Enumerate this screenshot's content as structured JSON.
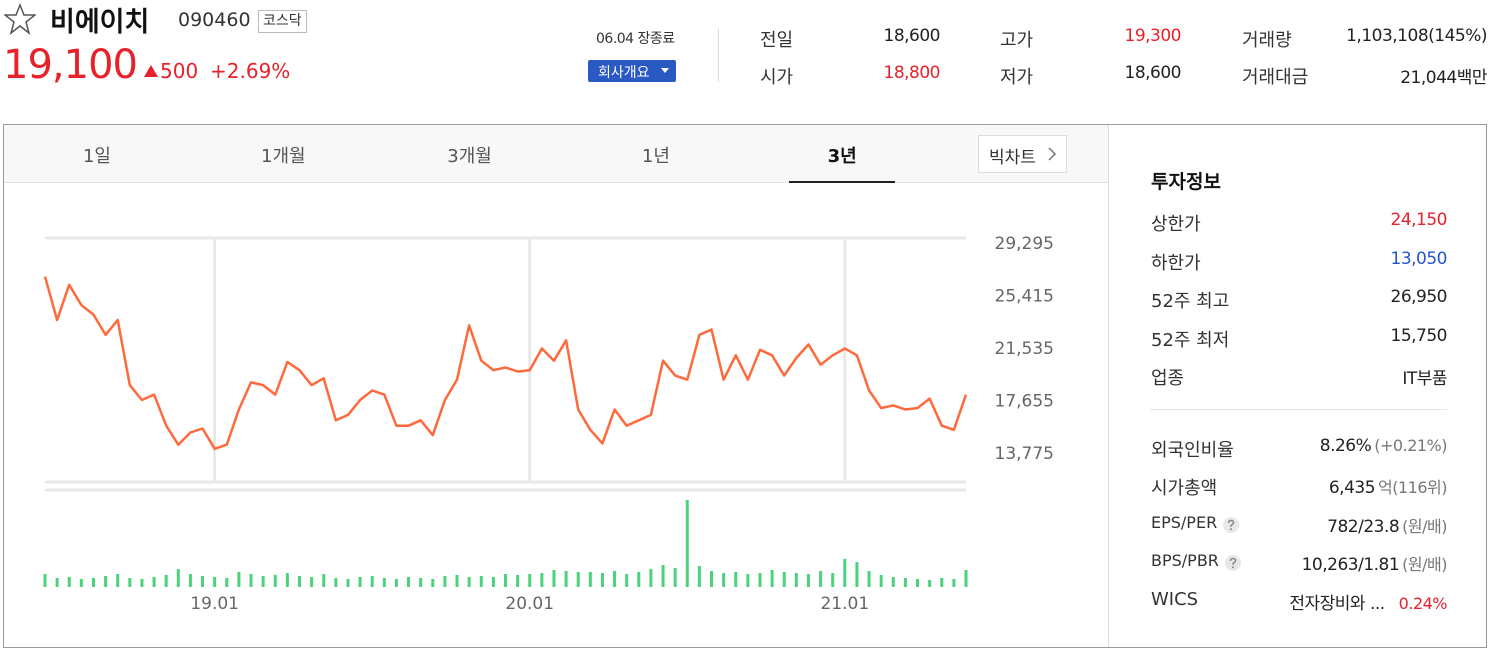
{
  "header": {
    "name": "비에이치",
    "code": "090460",
    "market": "코스닥",
    "price": "19,100",
    "change": "500",
    "change_rate": "+2.69%",
    "status": "06.04 장종료",
    "company_button": "회사개요",
    "up_color": "#e8212b"
  },
  "summary": [
    {
      "label": "전일",
      "value": "18,600"
    },
    {
      "label": "시가",
      "value": "18,800",
      "color": "#e8212b"
    },
    {
      "label": "고가",
      "value": "19,300",
      "color": "#e8212b"
    },
    {
      "label": "저가",
      "value": "18,600"
    },
    {
      "label": "거래량",
      "value": "1,103,108(145%)"
    },
    {
      "label": "거래대금",
      "value": "21,044백만"
    }
  ],
  "tabs": [
    "1일",
    "1개월",
    "3개월",
    "1년",
    "3년"
  ],
  "active_tab": 4,
  "bigchart_button": "빅차트",
  "chart_data": [
    {
      "type": "line",
      "color": "#ff6a3d",
      "values": [
        26800,
        23600,
        26200,
        24700,
        24000,
        22500,
        23600,
        18800,
        17700,
        18100,
        15800,
        14400,
        15300,
        15600,
        14100,
        14400,
        17000,
        19000,
        18800,
        18100,
        20500,
        19900,
        18800,
        19300,
        16200,
        16600,
        17700,
        18400,
        18100,
        15800,
        15800,
        16200,
        15100,
        17700,
        19200,
        23200,
        20600,
        19900,
        20100,
        19800,
        19900,
        21500,
        20600,
        22100,
        17000,
        15500,
        14500,
        17000,
        15800,
        16200,
        16600,
        20600,
        19500,
        19200,
        22500,
        22900,
        19200,
        21000,
        19200,
        21400,
        21000,
        19500,
        20800,
        21800,
        20300,
        21000,
        21500,
        21000,
        18400,
        17100,
        17300,
        17000,
        17100,
        17800,
        15800,
        15500,
        18100
      ],
      "ylim": [
        11650,
        29650
      ],
      "yticks": [
        {
          "value": 29295,
          "label": "29,295"
        },
        {
          "value": 25415,
          "label": "25,415"
        },
        {
          "value": 21535,
          "label": "21,535"
        },
        {
          "value": 17655,
          "label": "17,655"
        },
        {
          "value": 13775,
          "label": "13,775"
        }
      ]
    },
    {
      "type": "bar",
      "color": "#4cd17c",
      "categories": [
        null,
        null,
        null,
        null,
        null,
        null,
        null,
        null,
        null,
        null,
        null,
        null,
        null,
        null,
        "19.01",
        null,
        null,
        null,
        null,
        null,
        null,
        null,
        null,
        null,
        null,
        null,
        null,
        null,
        null,
        null,
        null,
        null,
        null,
        null,
        null,
        null,
        null,
        null,
        null,
        null,
        "20.01",
        null,
        null,
        null,
        null,
        null,
        null,
        null,
        null,
        null,
        null,
        null,
        null,
        null,
        null,
        null,
        null,
        null,
        null,
        null,
        null,
        null,
        null,
        null,
        null,
        null,
        "21.01",
        null,
        null,
        null,
        null,
        null,
        null,
        null,
        null,
        null,
        null
      ],
      "values": [
        1300,
        900,
        1000,
        800,
        900,
        1100,
        1300,
        900,
        800,
        1000,
        1200,
        1800,
        1300,
        1100,
        1000,
        900,
        1500,
        1300,
        1100,
        1200,
        1400,
        1100,
        1000,
        1300,
        900,
        800,
        1000,
        1100,
        900,
        800,
        1000,
        900,
        800,
        1100,
        1200,
        1000,
        1100,
        1000,
        1300,
        1200,
        1300,
        1400,
        1700,
        1600,
        1500,
        1500,
        1400,
        1600,
        1300,
        1500,
        1800,
        2200,
        1900,
        8700,
        2100,
        1600,
        1400,
        1500,
        1300,
        1400,
        1700,
        1500,
        1400,
        1300,
        1600,
        1400,
        2800,
        2500,
        1600,
        1200,
        1000,
        900,
        800,
        700,
        900,
        800,
        1700
      ]
    }
  ],
  "invest": {
    "title": "투자정보",
    "rows": [
      {
        "label": "상한가",
        "value": "24,150",
        "color": "#e8212b"
      },
      {
        "label": "하한가",
        "value": "13,050",
        "color": "#2556c8"
      },
      {
        "label": "52주 최고",
        "value": "26,950"
      },
      {
        "label": "52주 최저",
        "value": "15,750"
      },
      {
        "label": "업종",
        "value": "IT부품"
      }
    ],
    "rows2": [
      {
        "label": "외국인비율",
        "value": "8.26%",
        "note": "(+0.21%)"
      },
      {
        "label": "시가총액",
        "value": "6,435",
        "note": "억(116위)"
      },
      {
        "label": "EPS/PER",
        "value": "782/23.8",
        "note": "(원/배)",
        "help": true
      },
      {
        "label": "BPS/PBR",
        "value": "10,263/1.81",
        "note": "(원/배)",
        "help": true
      },
      {
        "label": "WICS",
        "value": "전자장비와 ...",
        "note": "0.24%",
        "note_color": "#e8212b"
      }
    ]
  }
}
